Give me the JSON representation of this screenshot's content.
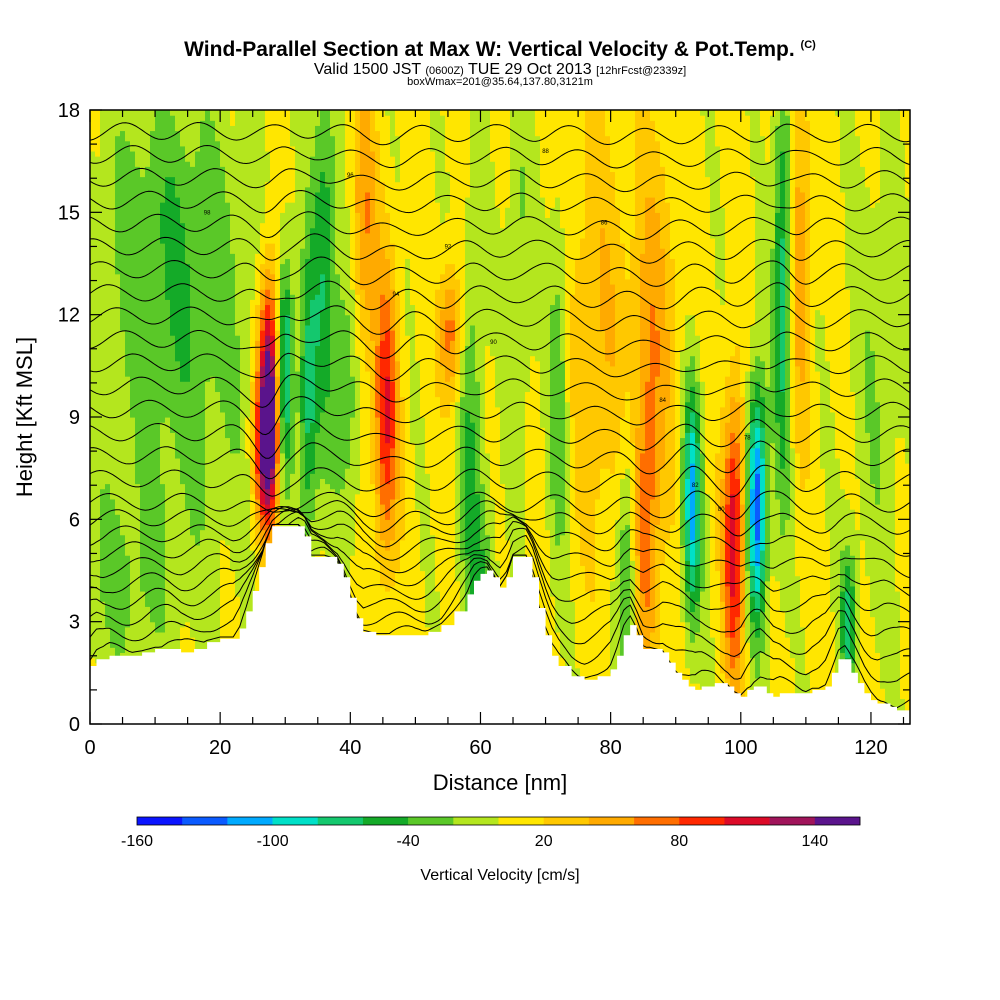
{
  "title": {
    "main": "Wind-Parallel Section at Max W: Vertical Velocity & Pot.Temp.",
    "copyright": "(C)",
    "valid_prefix": "Valid 1500 JST",
    "valid_utc": "(0600Z)",
    "valid_date": "TUE 29 Oct 2013",
    "forecast": "[12hrFcst@2339z]",
    "box_info": "boxWmax=201@35.64,137.80,3121m"
  },
  "chart_data": {
    "type": "heatmap",
    "xlabel": "Distance [nm]",
    "ylabel": "Height [Kft MSL]",
    "xlim": [
      0,
      126
    ],
    "ylim": [
      0,
      18
    ],
    "x_ticks": [
      0,
      20,
      40,
      60,
      80,
      100,
      120
    ],
    "y_ticks": [
      0,
      3,
      6,
      9,
      12,
      15,
      18
    ],
    "colorbar": {
      "label": "Vertical Velocity [cm/s]",
      "tick_labels": [
        -160,
        -100,
        -40,
        20,
        80,
        140
      ],
      "bins": [
        -160,
        -140,
        -120,
        -100,
        -80,
        -60,
        -40,
        -20,
        0,
        20,
        40,
        60,
        80,
        100,
        120,
        140,
        160
      ],
      "colors": [
        "#0a14ff",
        "#0a5aff",
        "#00aaff",
        "#00e0c8",
        "#14c86e",
        "#14aa28",
        "#5ac828",
        "#b4e61e",
        "#ffe600",
        "#ffc800",
        "#ffaa00",
        "#ff6e00",
        "#ff2800",
        "#dc0a28",
        "#a0145a",
        "#5a148c"
      ]
    },
    "terrain_kft": [
      [
        0,
        1.7
      ],
      [
        1,
        1.9
      ],
      [
        2,
        1.9
      ],
      [
        3,
        2.0
      ],
      [
        5,
        2.0
      ],
      [
        8,
        2.1
      ],
      [
        10,
        2.2
      ],
      [
        12,
        2.2
      ],
      [
        14,
        2.1
      ],
      [
        16,
        2.2
      ],
      [
        18,
        2.4
      ],
      [
        20,
        2.5
      ],
      [
        22,
        2.5
      ],
      [
        23,
        2.8
      ],
      [
        24,
        3.3
      ],
      [
        25,
        3.9
      ],
      [
        26,
        4.6
      ],
      [
        27,
        5.3
      ],
      [
        28,
        5.8
      ],
      [
        30,
        5.8
      ],
      [
        32,
        5.8
      ],
      [
        33,
        5.5
      ],
      [
        34,
        4.9
      ],
      [
        36,
        4.9
      ],
      [
        38,
        4.7
      ],
      [
        39,
        4.3
      ],
      [
        40,
        3.7
      ],
      [
        41,
        3.1
      ],
      [
        42,
        2.7
      ],
      [
        44,
        2.6
      ],
      [
        46,
        2.6
      ],
      [
        48,
        2.6
      ],
      [
        50,
        2.6
      ],
      [
        52,
        2.7
      ],
      [
        54,
        2.9
      ],
      [
        56,
        3.3
      ],
      [
        58,
        3.8
      ],
      [
        59,
        4.2
      ],
      [
        60,
        4.4
      ],
      [
        61,
        4.5
      ],
      [
        62,
        4.3
      ],
      [
        63,
        4.0
      ],
      [
        64,
        4.3
      ],
      [
        65,
        4.9
      ],
      [
        66,
        4.9
      ],
      [
        67,
        4.9
      ],
      [
        68,
        4.3
      ],
      [
        69,
        3.4
      ],
      [
        70,
        2.6
      ],
      [
        71,
        2.0
      ],
      [
        72,
        1.7
      ],
      [
        74,
        1.4
      ],
      [
        76,
        1.3
      ],
      [
        78,
        1.4
      ],
      [
        80,
        1.6
      ],
      [
        81,
        2.0
      ],
      [
        82,
        2.6
      ],
      [
        83,
        2.9
      ],
      [
        84,
        2.6
      ],
      [
        85,
        2.2
      ],
      [
        86,
        2.2
      ],
      [
        88,
        2.1
      ],
      [
        89,
        1.8
      ],
      [
        90,
        1.5
      ],
      [
        91,
        1.3
      ],
      [
        92,
        1.1
      ],
      [
        93,
        1.0
      ],
      [
        94,
        1.1
      ],
      [
        96,
        1.2
      ],
      [
        98,
        1.1
      ],
      [
        99,
        0.9
      ],
      [
        100,
        0.8
      ],
      [
        101,
        1.0
      ],
      [
        102,
        1.1
      ],
      [
        103,
        1.1
      ],
      [
        104,
        0.9
      ],
      [
        105,
        0.8
      ],
      [
        106,
        0.9
      ],
      [
        108,
        0.9
      ],
      [
        110,
        0.9
      ],
      [
        111,
        1.0
      ],
      [
        112,
        1.0
      ],
      [
        113,
        1.1
      ],
      [
        114,
        1.5
      ],
      [
        115,
        1.9
      ],
      [
        116,
        1.9
      ],
      [
        117,
        1.5
      ],
      [
        118,
        1.2
      ],
      [
        119,
        0.9
      ],
      [
        120,
        0.7
      ],
      [
        121,
        0.6
      ],
      [
        122,
        0.6
      ],
      [
        123,
        0.5
      ],
      [
        124,
        0.4
      ],
      [
        126,
        0.4
      ]
    ],
    "updraft_downdraft_cells": [
      {
        "x": 27.5,
        "z": 10.0,
        "w": 150,
        "sx": 1.1,
        "sz": 2.4
      },
      {
        "x": 27.0,
        "z": 8.0,
        "w": 100,
        "sx": 1.3,
        "sz": 1.6
      },
      {
        "x": 30.0,
        "z": 10.5,
        "w": -90,
        "sx": 0.9,
        "sz": 2.2
      },
      {
        "x": 33.5,
        "z": 9.5,
        "w": -70,
        "sx": 1.0,
        "sz": 3.0
      },
      {
        "x": 36.0,
        "z": 14.0,
        "w": -60,
        "sx": 1.3,
        "sz": 4.0
      },
      {
        "x": 39.5,
        "z": 10.0,
        "w": -45,
        "sx": 1.5,
        "sz": 3.0
      },
      {
        "x": 42.0,
        "z": 14.5,
        "w": 60,
        "sx": 1.4,
        "sz": 3.0
      },
      {
        "x": 45.5,
        "z": 9.0,
        "w": 95,
        "sx": 1.3,
        "sz": 3.0
      },
      {
        "x": 55.5,
        "z": 11.5,
        "w": 70,
        "sx": 1.3,
        "sz": 1.4
      },
      {
        "x": 58.5,
        "z": 8.5,
        "w": -45,
        "sx": 1.4,
        "sz": 4.5
      },
      {
        "x": 60.5,
        "z": 4.5,
        "w": -30,
        "sx": 1.6,
        "sz": 1.8
      },
      {
        "x": 66.0,
        "z": 13.5,
        "w": -30,
        "sx": 1.4,
        "sz": 4.0
      },
      {
        "x": 72.0,
        "z": 10.0,
        "w": -45,
        "sx": 1.2,
        "sz": 4.0
      },
      {
        "x": 78.0,
        "z": 11.5,
        "w": 35,
        "sx": 3.5,
        "sz": 4.5
      },
      {
        "x": 82.5,
        "z": 4.5,
        "w": -55,
        "sx": 1.0,
        "sz": 3.0
      },
      {
        "x": 85.5,
        "z": 5.5,
        "w": 60,
        "sx": 1.4,
        "sz": 3.5
      },
      {
        "x": 87.0,
        "z": 12.0,
        "w": 40,
        "sx": 2.5,
        "sz": 4.0
      },
      {
        "x": 92.5,
        "z": 6.5,
        "w": -110,
        "sx": 1.0,
        "sz": 2.5
      },
      {
        "x": 99.0,
        "z": 5.5,
        "w": 110,
        "sx": 1.2,
        "sz": 3.0
      },
      {
        "x": 102.5,
        "z": 6.5,
        "w": -140,
        "sx": 1.1,
        "sz": 2.5
      },
      {
        "x": 106.5,
        "z": 13.0,
        "w": -80,
        "sx": 1.0,
        "sz": 4.5
      },
      {
        "x": 109.0,
        "z": 14.0,
        "w": 50,
        "sx": 1.2,
        "sz": 4.0
      },
      {
        "x": 116.5,
        "z": 3.0,
        "w": -70,
        "sx": 0.9,
        "sz": 1.5
      },
      {
        "x": 12.0,
        "z": 15.0,
        "w": -30,
        "sx": 8.0,
        "sz": 3.0
      },
      {
        "x": 14.0,
        "z": 10.0,
        "w": -30,
        "sx": 9.0,
        "sz": 4.0
      },
      {
        "x": 5.0,
        "z": 4.0,
        "w": -25,
        "sx": 6.0,
        "sz": 2.0
      },
      {
        "x": 121.0,
        "z": 10.0,
        "w": -22,
        "sx": 3.0,
        "sz": 5.0
      }
    ],
    "theta_contour_labels": [
      "98",
      "96",
      "94",
      "92",
      "90",
      "88",
      "86",
      "84",
      "82",
      "80",
      "78"
    ]
  }
}
